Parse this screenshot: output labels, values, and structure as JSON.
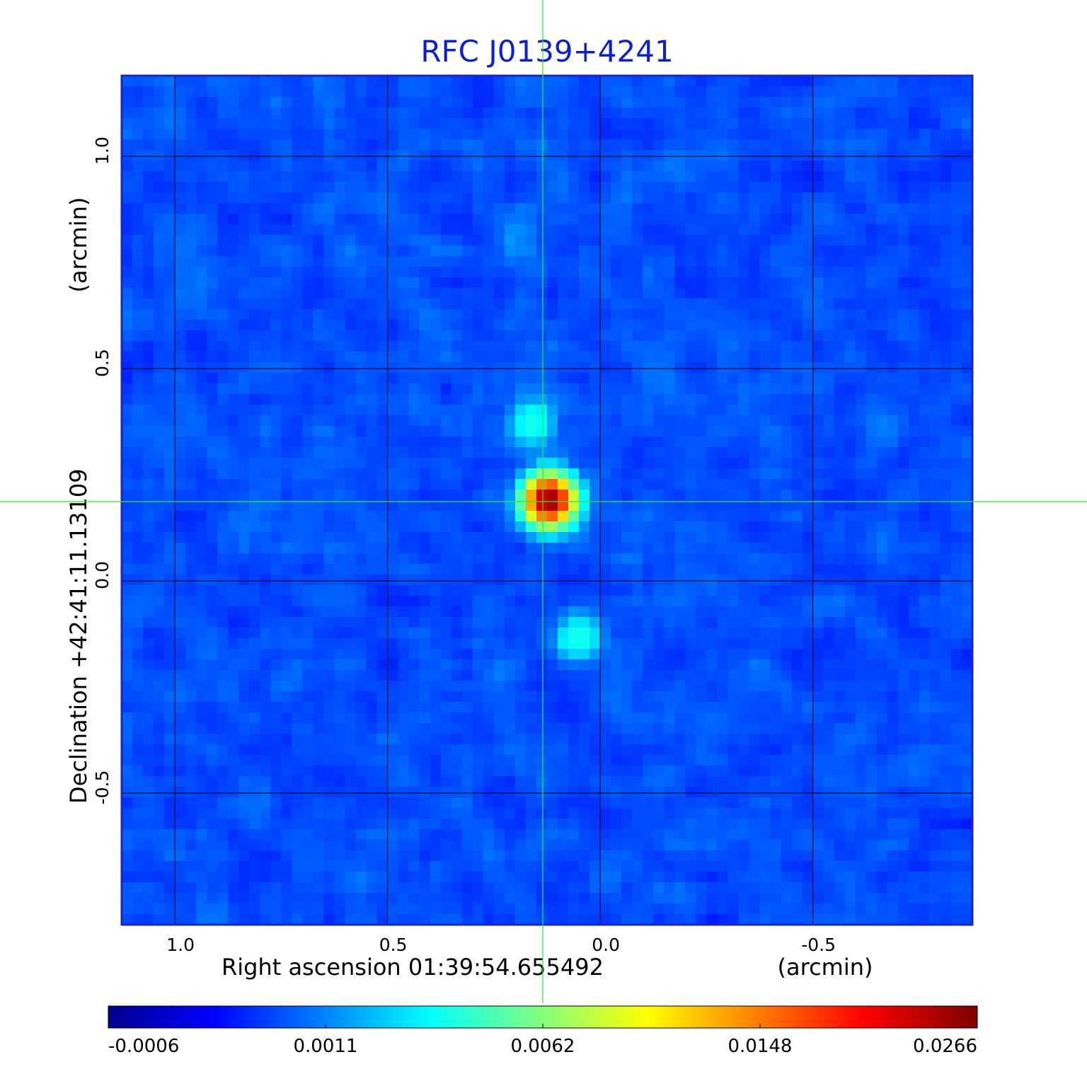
{
  "chart_data": {
    "type": "heatmap",
    "title": "RFC J0139+4241",
    "xlabel": "Right ascension  01:39:54.655492",
    "xunit": "(arcmin)",
    "ylabel": "Declination  +42:41:11.13109",
    "yunit": "(arcmin)",
    "xlim": [
      1.125,
      -0.875
    ],
    "ylim": [
      -0.81,
      1.19
    ],
    "x_ticks": [
      1.0,
      0.5,
      0.0,
      -0.5
    ],
    "x_tick_labels": [
      "1.0",
      "0.5",
      "0.0",
      "-0.5"
    ],
    "y_ticks": [
      1.0,
      0.5,
      0.0,
      -0.5
    ],
    "y_tick_labels": [
      "1.0",
      "0.5",
      "0.0",
      "-0.5"
    ],
    "grid": true,
    "colormap": "jet",
    "crosshair": {
      "x": 0.13,
      "y": 0.19,
      "color": "#33e633"
    },
    "colorbar": {
      "orientation": "horizontal",
      "placement": "bottom",
      "tick_labels": [
        "-0.0006",
        "0.0011",
        "0.0062",
        "0.0148",
        "0.0266"
      ],
      "min": -0.0006,
      "max": 0.0266
    },
    "background_level": -0.0002,
    "sources": [
      {
        "x": 0.12,
        "y": 0.19,
        "peak": 0.0266
      },
      {
        "x": 0.16,
        "y": 0.37,
        "peak": 0.0022
      },
      {
        "x": 0.05,
        "y": -0.135,
        "peak": 0.0023
      },
      {
        "x": 0.2,
        "y": 0.8,
        "peak": 0.0007
      }
    ]
  }
}
